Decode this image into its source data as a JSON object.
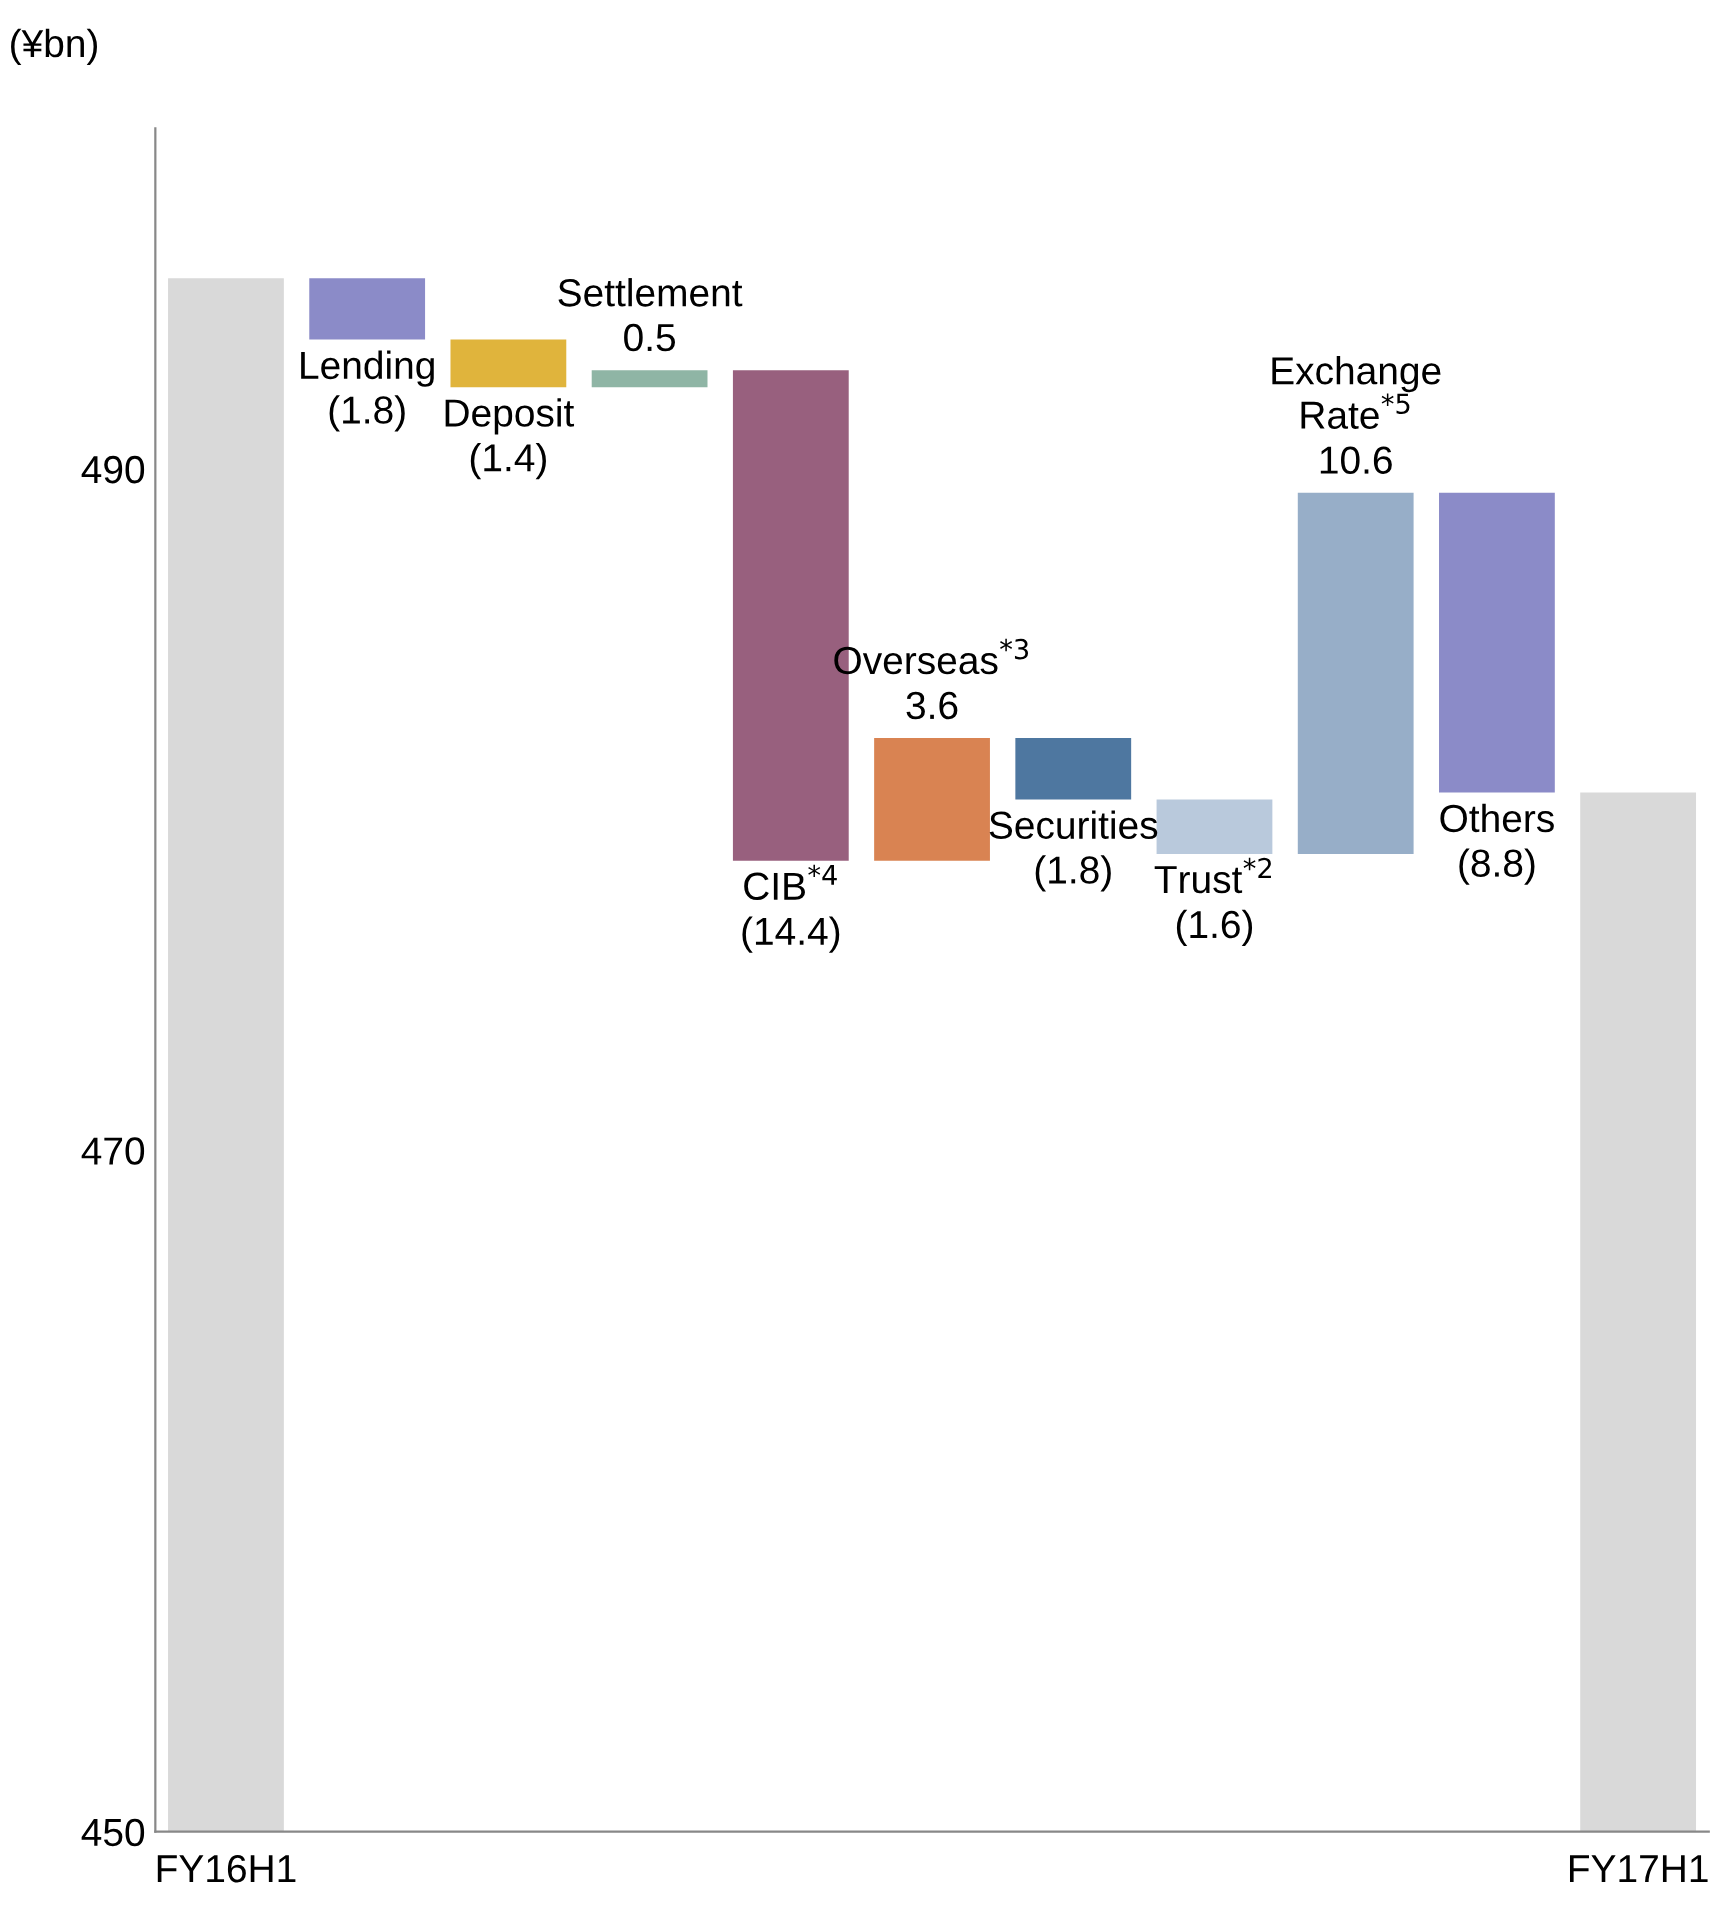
{
  "chart_data": {
    "type": "bar",
    "ylabel": "(¥bn)",
    "categories": [
      "FY16H1",
      null,
      null,
      null,
      null,
      null,
      null,
      null,
      null,
      null,
      "FY17H1"
    ],
    "values": [
      45.6,
      -1.8,
      -1.4,
      0.5,
      -14.4,
      3.6,
      -1.8,
      -1.6,
      10.6,
      -8.8,
      30.5
    ],
    "base": [
      450,
      495.6,
      493.8,
      492.4,
      492.9,
      478.5,
      482.1,
      480.3,
      478.7,
      489.3,
      450
    ],
    "colors": [
      "#d9d9d9",
      "#8b8bc8",
      "#e0b43c",
      "#8fb5a5",
      "#98607e",
      "#d98352",
      "#4e77a0",
      "#b9c9dc",
      "#97aec8",
      "#8b8bc8",
      "#d9d9d9"
    ],
    "value_labels": [
      null,
      "Lending\n(1.8)",
      "Deposit\n(1.4)",
      "Settlement\n0.5",
      "CIB$^{*4}$\n(14.4)",
      "Overseas$^{*3}$\n3.6",
      "Securities\n(1.8)",
      "Trust$^{*2}$\n(1.6)",
      "Exchange\nRate$^{*5}$\n10.6",
      "Others\n(8.8)",
      null
    ],
    "ylim": [
      450,
      500
    ],
    "yticks": [
      450,
      470,
      490
    ],
    "grid": false
  }
}
